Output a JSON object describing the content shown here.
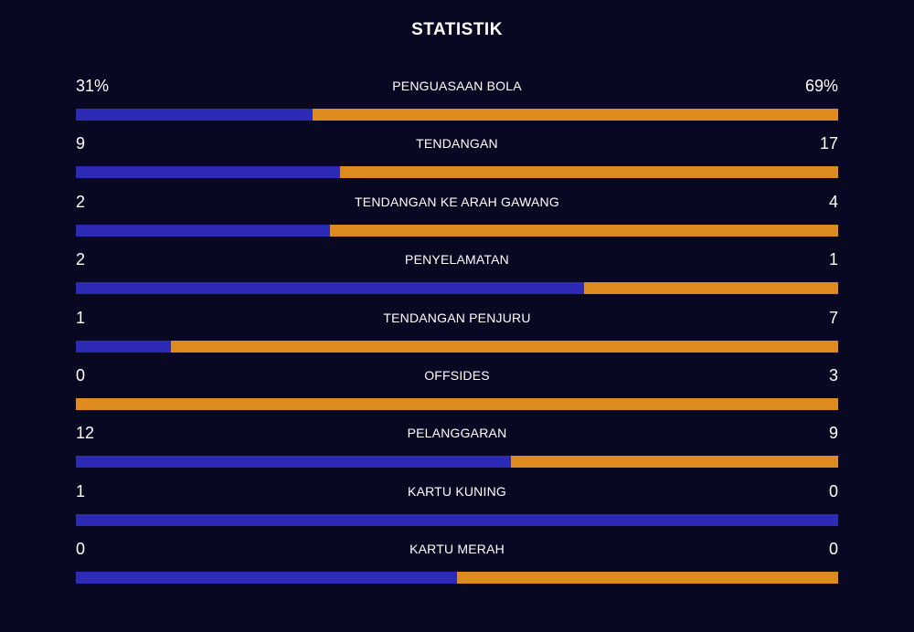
{
  "title": "STATISTIK",
  "colors": {
    "background": "#080822",
    "home": "#2d2ab6",
    "away": "#dd8a1e"
  },
  "stats": [
    {
      "label": "PENGUASAAN BOLA",
      "home": "31%",
      "away": "69%",
      "home_share": 0.31
    },
    {
      "label": "TENDANGAN",
      "home": "9",
      "away": "17",
      "home_share": 0.346
    },
    {
      "label": "TENDANGAN KE ARAH GAWANG",
      "home": "2",
      "away": "4",
      "home_share": 0.333
    },
    {
      "label": "PENYELAMATAN",
      "home": "2",
      "away": "1",
      "home_share": 0.667
    },
    {
      "label": "TENDANGAN PENJURU",
      "home": "1",
      "away": "7",
      "home_share": 0.125
    },
    {
      "label": "OFFSIDES",
      "home": "0",
      "away": "3",
      "home_share": 0
    },
    {
      "label": "PELANGGARAN",
      "home": "12",
      "away": "9",
      "home_share": 0.571
    },
    {
      "label": "KARTU KUNING",
      "home": "1",
      "away": "0",
      "home_share": 1
    },
    {
      "label": "KARTU MERAH",
      "home": "0",
      "away": "0",
      "home_share": 0.5
    }
  ]
}
